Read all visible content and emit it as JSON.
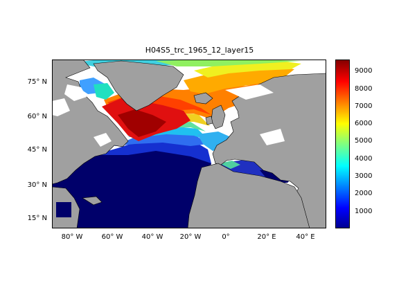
{
  "title": "H04S5_trc_1965_12_layer15",
  "map": {
    "lat_ticks": [
      "15° N",
      "30° N",
      "45° N",
      "60° N",
      "75° N"
    ],
    "lon_ticks": [
      "80° W",
      "60° W",
      "40° W",
      "20° W",
      "0°",
      "20° E",
      "40° E"
    ],
    "land_color": "#a0a0a0",
    "nodata_color": "#ffffff"
  },
  "colorbar": {
    "ticks": [
      "1000",
      "2000",
      "3000",
      "4000",
      "5000",
      "6000",
      "7000",
      "8000",
      "9000"
    ],
    "min": 0,
    "max": 9800,
    "colormap": "jet"
  }
}
